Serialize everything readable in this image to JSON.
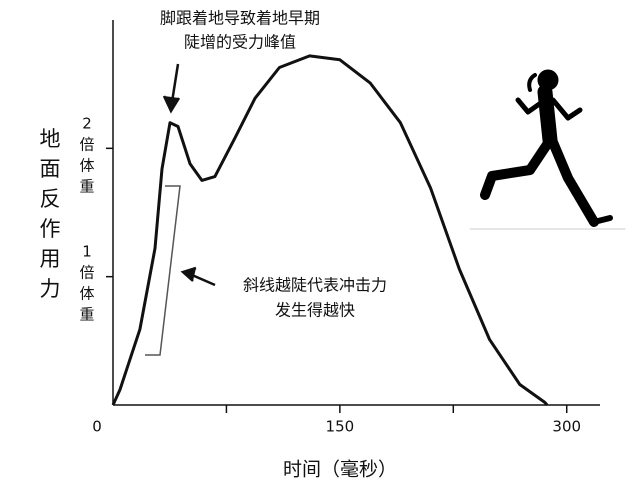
{
  "chart_data": {
    "type": "line",
    "y_label": "地面反作用力",
    "x_label": "时间（毫秒）",
    "xlim": [
      0,
      322
    ],
    "ylim": [
      0,
      3
    ],
    "xticks": [
      0,
      150,
      300
    ],
    "xminor_ticks": [
      75,
      225
    ],
    "yticks": [
      {
        "value": 1,
        "label": "1倍体重"
      },
      {
        "value": 2,
        "label": "2倍体重"
      }
    ],
    "series": [
      {
        "color": "#111111",
        "x": [
          0,
          4.6,
          17.8,
          27.8,
          32.4,
          37.7,
          43,
          50.9,
          58.8,
          67.4,
          80.6,
          93.9,
          110,
          130,
          150,
          170,
          190,
          210,
          229,
          249,
          269,
          285.5,
          287
        ],
        "values": [
          0,
          0.12,
          0.59,
          1.22,
          1.84,
          2.2,
          2.17,
          1.88,
          1.75,
          1.78,
          2.08,
          2.39,
          2.63,
          2.72,
          2.69,
          2.51,
          2.2,
          1.69,
          1.06,
          0.51,
          0.16,
          0.02,
          0
        ]
      }
    ],
    "annotations": [
      {
        "lines": [
          "脚跟着地导致着地早期",
          "陡增的受力峰值"
        ]
      },
      {
        "lines": [
          "斜线越陡代表冲击力",
          "发生得越快"
        ]
      }
    ]
  }
}
